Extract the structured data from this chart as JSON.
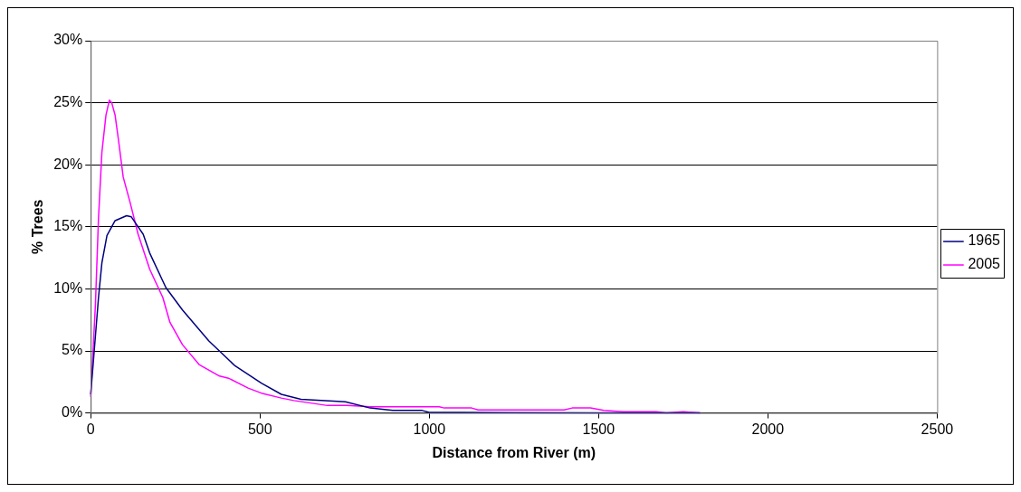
{
  "chart_data": {
    "type": "line",
    "xlabel": "Distance from River (m)",
    "ylabel": "% Trees",
    "xlim": [
      0,
      2500
    ],
    "xticks": [
      0,
      500,
      1000,
      1500,
      2000,
      2500
    ],
    "ylim": [
      0,
      30
    ],
    "yticks": [
      {
        "value": 0,
        "label": "0%"
      },
      {
        "value": 5,
        "label": "5%"
      },
      {
        "value": 10,
        "label": "10%"
      },
      {
        "value": 15,
        "label": "15%"
      },
      {
        "value": 20,
        "label": "20%"
      },
      {
        "value": 25,
        "label": "25%"
      },
      {
        "value": 30,
        "label": "30%"
      }
    ],
    "grid": "y",
    "legend": "right",
    "marker": "none",
    "line_style": "solid",
    "series": [
      {
        "name": "1965",
        "color": "#000080",
        "x": [
          0,
          23,
          33,
          48,
          72,
          106,
          120,
          155,
          174,
          222,
          271,
          349,
          426,
          504,
          563,
          621,
          752,
          825,
          892,
          979,
          1000,
          1232,
          1500,
          1800
        ],
        "values": [
          1.5,
          9.3,
          12.1,
          14.3,
          15.5,
          15.9,
          15.8,
          14.4,
          12.9,
          10.1,
          8.3,
          5.8,
          3.8,
          2.4,
          1.5,
          1.1,
          0.9,
          0.4,
          0.2,
          0.2,
          0.05,
          0.02,
          0,
          0
        ]
      },
      {
        "name": "2005",
        "color": "#ff00ff",
        "x": [
          0,
          14,
          23,
          33,
          45,
          55,
          62,
          72,
          82,
          96,
          116,
          140,
          174,
          213,
          234,
          271,
          320,
          378,
          407,
          465,
          504,
          563,
          600,
          699,
          757,
          825,
          1029,
          1044,
          1125,
          1144,
          1398,
          1422,
          1476,
          1515,
          1573,
          1670,
          1700,
          1750,
          1800
        ],
        "values": [
          1.3,
          8.8,
          15.7,
          21,
          24,
          25.2,
          25,
          24,
          22,
          19,
          17,
          14.4,
          11.6,
          9.3,
          7.3,
          5.5,
          3.9,
          3.0,
          2.8,
          2.0,
          1.6,
          1.2,
          1.0,
          0.6,
          0.6,
          0.5,
          0.5,
          0.4,
          0.4,
          0.25,
          0.25,
          0.4,
          0.4,
          0.2,
          0.1,
          0.1,
          0,
          0.1,
          0
        ]
      }
    ]
  }
}
